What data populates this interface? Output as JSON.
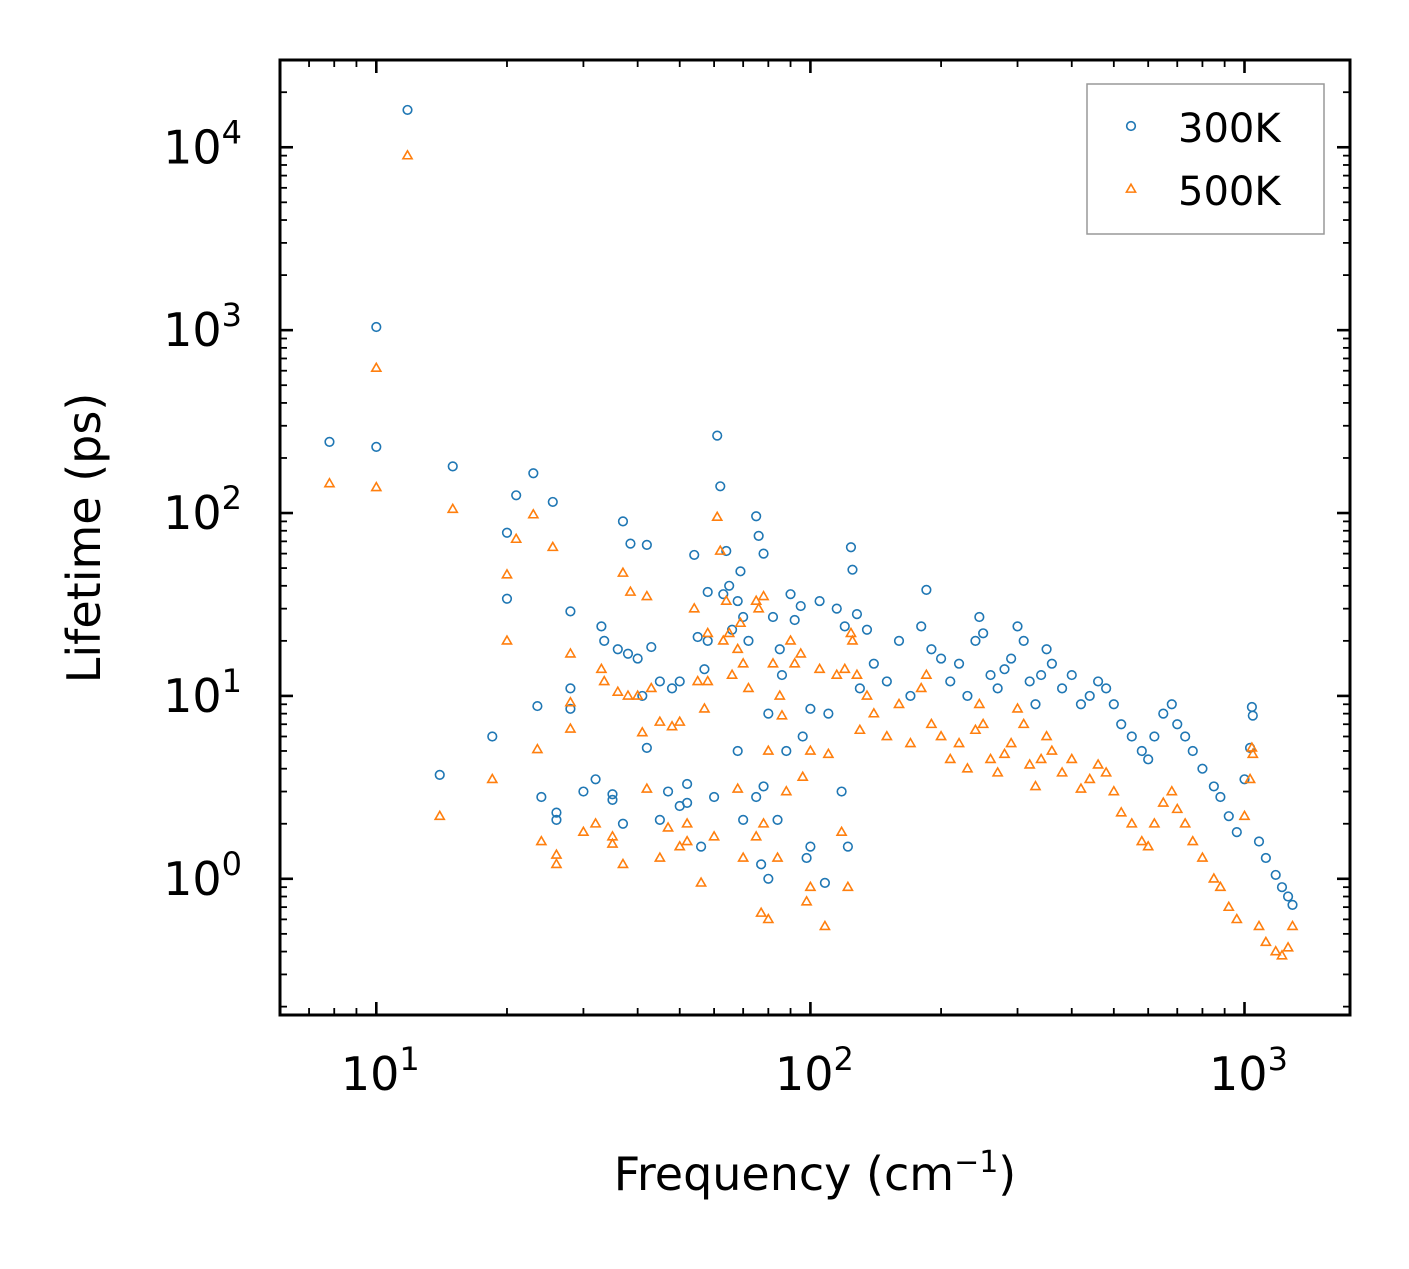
{
  "chart_data": {
    "type": "scatter",
    "title": "",
    "xlabel": "Frequency (cm",
    "xlabel_sup": "−1",
    "xlabel_end": ")",
    "ylabel": "Lifetime (ps)",
    "x_scale": "log",
    "y_scale": "log",
    "xlim": [
      6,
      1750
    ],
    "ylim": [
      0.18,
      30000
    ],
    "x_ticks": [
      {
        "base": "10",
        "exp": "1",
        "value": 10
      },
      {
        "base": "10",
        "exp": "2",
        "value": 100
      },
      {
        "base": "10",
        "exp": "3",
        "value": 1000
      }
    ],
    "y_ticks": [
      {
        "base": "10",
        "exp": "0",
        "value": 1
      },
      {
        "base": "10",
        "exp": "1",
        "value": 10
      },
      {
        "base": "10",
        "exp": "2",
        "value": 100
      },
      {
        "base": "10",
        "exp": "3",
        "value": 1000
      },
      {
        "base": "10",
        "exp": "4",
        "value": 10000
      }
    ],
    "grid": false,
    "legend_position": "top-right",
    "series": [
      {
        "name": "300K",
        "marker": "circle",
        "color": "#1f77b4",
        "points": [
          [
            7.8,
            245
          ],
          [
            10.0,
            1040
          ],
          [
            10.0,
            230
          ],
          [
            11.8,
            16000
          ],
          [
            14.0,
            3.7
          ],
          [
            15.0,
            180
          ],
          [
            18.5,
            6.0
          ],
          [
            20.0,
            78
          ],
          [
            20.0,
            34
          ],
          [
            21.0,
            125
          ],
          [
            23.0,
            165
          ],
          [
            23.5,
            8.8
          ],
          [
            24.0,
            2.8
          ],
          [
            25.5,
            115
          ],
          [
            26.0,
            2.3
          ],
          [
            26.0,
            2.1
          ],
          [
            28.0,
            29
          ],
          [
            28.0,
            11
          ],
          [
            28.0,
            8.5
          ],
          [
            30.0,
            3.0
          ],
          [
            32.0,
            3.5
          ],
          [
            33.0,
            24
          ],
          [
            33.5,
            20
          ],
          [
            35.0,
            2.9
          ],
          [
            35.0,
            2.7
          ],
          [
            36.0,
            18
          ],
          [
            37.0,
            90
          ],
          [
            37.0,
            2.0
          ],
          [
            38.0,
            17
          ],
          [
            38.5,
            68
          ],
          [
            40.0,
            16
          ],
          [
            41.0,
            10
          ],
          [
            42.0,
            67
          ],
          [
            42.0,
            5.2
          ],
          [
            43.0,
            18.5
          ],
          [
            45.0,
            12
          ],
          [
            45.0,
            2.1
          ],
          [
            47.0,
            3.0
          ],
          [
            48.0,
            11
          ],
          [
            50.0,
            12
          ],
          [
            50.0,
            2.5
          ],
          [
            52.0,
            3.3
          ],
          [
            52.0,
            2.6
          ],
          [
            54.0,
            59
          ],
          [
            55.0,
            21
          ],
          [
            56.0,
            1.5
          ],
          [
            57.0,
            14
          ],
          [
            58.0,
            20
          ],
          [
            58.0,
            37
          ],
          [
            60.0,
            2.8
          ],
          [
            61.0,
            265
          ],
          [
            62.0,
            140
          ],
          [
            63.0,
            36
          ],
          [
            64.0,
            62
          ],
          [
            65.0,
            40
          ],
          [
            66.0,
            23
          ],
          [
            68.0,
            33
          ],
          [
            68.0,
            5
          ],
          [
            69.0,
            48
          ],
          [
            70.0,
            27
          ],
          [
            70.0,
            2.1
          ],
          [
            72.0,
            20
          ],
          [
            75.0,
            96
          ],
          [
            75.0,
            2.8
          ],
          [
            76.0,
            75
          ],
          [
            77.0,
            1.2
          ],
          [
            78.0,
            60
          ],
          [
            78.0,
            3.2
          ],
          [
            80.0,
            1.0
          ],
          [
            80.0,
            8.0
          ],
          [
            82.0,
            27
          ],
          [
            84.0,
            2.1
          ],
          [
            85.0,
            18
          ],
          [
            86.0,
            13
          ],
          [
            88.0,
            5.0
          ],
          [
            90.0,
            36
          ],
          [
            92.0,
            26
          ],
          [
            95.0,
            31
          ],
          [
            96.0,
            6.0
          ],
          [
            98.0,
            1.3
          ],
          [
            100.0,
            8.5
          ],
          [
            100.0,
            1.5
          ],
          [
            105.0,
            33
          ],
          [
            108.0,
            0.95
          ],
          [
            110.0,
            8.0
          ],
          [
            115.0,
            30
          ],
          [
            118.0,
            3.0
          ],
          [
            120.0,
            24
          ],
          [
            122.0,
            1.5
          ],
          [
            124.0,
            65
          ],
          [
            125.0,
            49
          ],
          [
            128.0,
            28
          ],
          [
            130.0,
            11
          ],
          [
            135.0,
            23
          ],
          [
            140.0,
            15
          ],
          [
            150.0,
            12
          ],
          [
            160.0,
            20
          ],
          [
            170.0,
            10
          ],
          [
            180.0,
            24
          ],
          [
            185.0,
            38
          ],
          [
            190.0,
            18
          ],
          [
            200.0,
            16
          ],
          [
            210.0,
            12
          ],
          [
            220.0,
            15
          ],
          [
            230.0,
            10
          ],
          [
            240.0,
            20
          ],
          [
            245.0,
            27
          ],
          [
            250.0,
            22
          ],
          [
            260.0,
            13
          ],
          [
            270.0,
            11
          ],
          [
            280.0,
            14
          ],
          [
            290.0,
            16
          ],
          [
            300.0,
            24
          ],
          [
            310.0,
            20
          ],
          [
            320.0,
            12
          ],
          [
            330.0,
            9
          ],
          [
            340.0,
            13
          ],
          [
            350.0,
            18
          ],
          [
            360.0,
            15
          ],
          [
            380.0,
            11
          ],
          [
            400.0,
            13
          ],
          [
            420.0,
            9
          ],
          [
            440.0,
            10
          ],
          [
            460.0,
            12
          ],
          [
            480.0,
            11
          ],
          [
            500.0,
            9
          ],
          [
            520.0,
            7
          ],
          [
            550.0,
            6
          ],
          [
            580.0,
            5
          ],
          [
            600.0,
            4.5
          ],
          [
            620.0,
            6
          ],
          [
            650.0,
            8
          ],
          [
            680.0,
            9
          ],
          [
            700.0,
            7
          ],
          [
            730.0,
            6
          ],
          [
            760.0,
            5
          ],
          [
            800.0,
            4
          ],
          [
            850.0,
            3.2
          ],
          [
            880.0,
            2.8
          ],
          [
            920.0,
            2.2
          ],
          [
            960.0,
            1.8
          ],
          [
            1000.0,
            3.5
          ],
          [
            1030.0,
            5.2
          ],
          [
            1040.0,
            8.7
          ],
          [
            1045.0,
            7.8
          ],
          [
            1080.0,
            1.6
          ],
          [
            1120.0,
            1.3
          ],
          [
            1180.0,
            1.05
          ],
          [
            1220.0,
            0.9
          ],
          [
            1260.0,
            0.8
          ],
          [
            1290.0,
            0.72
          ]
        ]
      },
      {
        "name": "500K",
        "marker": "triangle",
        "color": "#ff7f0e",
        "points": [
          [
            7.8,
            145
          ],
          [
            10.0,
            620
          ],
          [
            10.0,
            138
          ],
          [
            11.8,
            9000
          ],
          [
            14.0,
            2.2
          ],
          [
            15.0,
            105
          ],
          [
            18.5,
            3.5
          ],
          [
            20.0,
            46
          ],
          [
            20.0,
            20
          ],
          [
            21.0,
            72
          ],
          [
            23.0,
            98
          ],
          [
            23.5,
            5.1
          ],
          [
            24.0,
            1.6
          ],
          [
            25.5,
            65
          ],
          [
            26.0,
            1.35
          ],
          [
            26.0,
            1.2
          ],
          [
            28.0,
            17
          ],
          [
            28.0,
            6.6
          ],
          [
            28.0,
            9.2
          ],
          [
            30.0,
            1.8
          ],
          [
            32.0,
            2.0
          ],
          [
            33.0,
            14
          ],
          [
            33.5,
            12
          ],
          [
            35.0,
            1.7
          ],
          [
            35.0,
            1.55
          ],
          [
            36.0,
            10.5
          ],
          [
            37.0,
            47
          ],
          [
            37.0,
            1.2
          ],
          [
            38.0,
            10
          ],
          [
            38.5,
            37
          ],
          [
            40.0,
            10
          ],
          [
            41.0,
            6.3
          ],
          [
            42.0,
            35
          ],
          [
            42.0,
            3.1
          ],
          [
            43.0,
            11
          ],
          [
            45.0,
            7.2
          ],
          [
            45.0,
            1.3
          ],
          [
            47.0,
            1.9
          ],
          [
            48.0,
            6.8
          ],
          [
            50.0,
            7.2
          ],
          [
            50.0,
            1.5
          ],
          [
            52.0,
            2.0
          ],
          [
            52.0,
            1.6
          ],
          [
            54.0,
            30
          ],
          [
            55.0,
            12
          ],
          [
            56.0,
            0.95
          ],
          [
            57.0,
            8.5
          ],
          [
            58.0,
            12
          ],
          [
            58.0,
            22
          ],
          [
            60.0,
            1.7
          ],
          [
            61.0,
            95
          ],
          [
            62.0,
            62
          ],
          [
            63.0,
            20
          ],
          [
            64.0,
            33
          ],
          [
            65.0,
            22
          ],
          [
            66.0,
            13
          ],
          [
            68.0,
            18
          ],
          [
            68.0,
            3.1
          ],
          [
            69.0,
            25
          ],
          [
            70.0,
            15
          ],
          [
            70.0,
            1.3
          ],
          [
            72.0,
            11
          ],
          [
            75.0,
            33
          ],
          [
            75.0,
            1.7
          ],
          [
            76.0,
            30
          ],
          [
            77.0,
            0.65
          ],
          [
            78.0,
            35
          ],
          [
            78.0,
            2.0
          ],
          [
            80.0,
            0.6
          ],
          [
            80.0,
            5.0
          ],
          [
            82.0,
            15
          ],
          [
            84.0,
            1.3
          ],
          [
            85.0,
            10
          ],
          [
            86.0,
            7.8
          ],
          [
            88.0,
            3.0
          ],
          [
            90.0,
            20
          ],
          [
            92.0,
            15
          ],
          [
            95.0,
            17
          ],
          [
            96.0,
            3.6
          ],
          [
            98.0,
            0.75
          ],
          [
            100.0,
            5.0
          ],
          [
            100.0,
            0.9
          ],
          [
            105.0,
            14
          ],
          [
            108.0,
            0.55
          ],
          [
            110.0,
            4.8
          ],
          [
            115.0,
            13
          ],
          [
            118.0,
            1.8
          ],
          [
            120.0,
            14
          ],
          [
            122.0,
            0.9
          ],
          [
            124.0,
            22
          ],
          [
            125.0,
            20
          ],
          [
            128.0,
            13
          ],
          [
            130.0,
            6.5
          ],
          [
            135.0,
            10
          ],
          [
            140.0,
            8
          ],
          [
            150.0,
            6
          ],
          [
            160.0,
            9
          ],
          [
            170.0,
            5.5
          ],
          [
            180.0,
            11
          ],
          [
            185.0,
            13
          ],
          [
            190.0,
            7
          ],
          [
            200.0,
            6
          ],
          [
            210.0,
            4.5
          ],
          [
            220.0,
            5.5
          ],
          [
            230.0,
            4
          ],
          [
            240.0,
            6.5
          ],
          [
            245.0,
            9
          ],
          [
            250.0,
            7
          ],
          [
            260.0,
            4.5
          ],
          [
            270.0,
            3.8
          ],
          [
            280.0,
            4.8
          ],
          [
            290.0,
            5.5
          ],
          [
            300.0,
            8.5
          ],
          [
            310.0,
            7
          ],
          [
            320.0,
            4.2
          ],
          [
            330.0,
            3.2
          ],
          [
            340.0,
            4.5
          ],
          [
            350.0,
            6
          ],
          [
            360.0,
            5
          ],
          [
            380.0,
            3.8
          ],
          [
            400.0,
            4.5
          ],
          [
            420.0,
            3.1
          ],
          [
            440.0,
            3.5
          ],
          [
            460.0,
            4.2
          ],
          [
            480.0,
            3.8
          ],
          [
            500.0,
            3.0
          ],
          [
            520.0,
            2.3
          ],
          [
            550.0,
            2.0
          ],
          [
            580.0,
            1.6
          ],
          [
            600.0,
            1.5
          ],
          [
            620.0,
            2.0
          ],
          [
            650.0,
            2.6
          ],
          [
            680.0,
            3.0
          ],
          [
            700.0,
            2.4
          ],
          [
            730.0,
            2.0
          ],
          [
            760.0,
            1.6
          ],
          [
            800.0,
            1.3
          ],
          [
            850.0,
            1.0
          ],
          [
            880.0,
            0.9
          ],
          [
            920.0,
            0.7
          ],
          [
            960.0,
            0.6
          ],
          [
            1000.0,
            2.2
          ],
          [
            1030.0,
            3.5
          ],
          [
            1040.0,
            5.2
          ],
          [
            1045.0,
            4.8
          ],
          [
            1080.0,
            0.55
          ],
          [
            1120.0,
            0.45
          ],
          [
            1180.0,
            0.4
          ],
          [
            1220.0,
            0.38
          ],
          [
            1260.0,
            0.42
          ],
          [
            1290.0,
            0.55
          ]
        ]
      }
    ]
  }
}
